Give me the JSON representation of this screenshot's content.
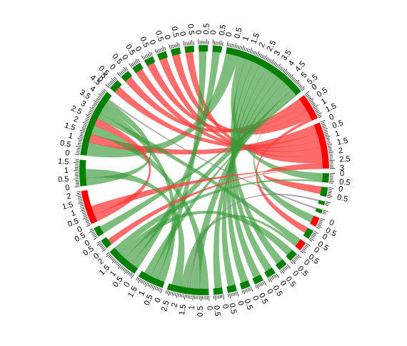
{
  "chart_data": {
    "type": "chord",
    "title": "",
    "colors": {
      "positive": "#008000",
      "negative": "#ff0000",
      "ribbon_positive": "#3a9a3a",
      "ribbon_negative": "#ff3b3b",
      "minor_link": "#777777",
      "tick": "#000000"
    },
    "sectors": [
      {
        "id": "s1",
        "span": 4.4,
        "color": "positive",
        "ticks": [
          "0",
          "0.5",
          "1",
          "1.5",
          "2",
          "2.5",
          "3",
          "3.5",
          "4",
          "4.5",
          "5"
        ]
      },
      {
        "id": "s2",
        "span": 0.7,
        "color": "positive",
        "ticks": [
          "0",
          "0.5"
        ]
      },
      {
        "id": "s3",
        "span": 0.6,
        "color": "positive",
        "ticks": [
          "0",
          "0.5"
        ]
      },
      {
        "id": "s4",
        "span": 0.6,
        "color": "positive",
        "ticks": [
          "0",
          "0.5"
        ]
      },
      {
        "id": "s5",
        "span": 0.6,
        "color": "positive",
        "ticks": [
          "0",
          "0.5"
        ]
      },
      {
        "id": "s6",
        "span": 0.6,
        "color": "positive",
        "ticks": [
          "0",
          "0.5"
        ]
      },
      {
        "id": "s7",
        "span": 0.6,
        "color": "positive",
        "ticks": [
          "0",
          "0.5"
        ]
      },
      {
        "id": "s8",
        "span": 0.6,
        "color": "positive",
        "ticks": [
          "0",
          "0.5"
        ]
      },
      {
        "id": "s9",
        "span": 0.6,
        "color": "positive",
        "ticks": [
          "0",
          "0.5"
        ]
      },
      {
        "id": "s10",
        "span": 0.6,
        "color": "positive",
        "ticks": [
          "0",
          "0.5"
        ]
      },
      {
        "id": "s11",
        "span": 5.6,
        "color": "positive",
        "ticks": [
          "0",
          "0.5",
          "1",
          "1.5",
          "2",
          "2.5",
          "3",
          "3.5",
          "4",
          "4.5",
          "5",
          "5.5"
        ]
      },
      {
        "id": "s12",
        "span": 1.7,
        "color": "negative",
        "ticks": [
          "0",
          "0.5",
          "1",
          "1.5"
        ]
      },
      {
        "id": "s13",
        "span": 3.0,
        "color": "negative",
        "ticks": [
          "0",
          "0.5",
          "1",
          "1.5",
          "2",
          "2.5",
          "3"
        ]
      },
      {
        "id": "s14",
        "span": 0.6,
        "color": "positive",
        "ticks": [
          "0",
          "0.5"
        ]
      },
      {
        "id": "s15",
        "span": 0.6,
        "color": "positive",
        "ticks": [
          "0",
          "0.5"
        ]
      },
      {
        "id": "s16",
        "span": 0.25,
        "color": "positive",
        "ticks": []
      },
      {
        "id": "s17",
        "span": 0.25,
        "color": "positive",
        "ticks": []
      },
      {
        "id": "s18",
        "span": 0.6,
        "color": "negative",
        "ticks": [
          "0",
          "0.5"
        ]
      },
      {
        "id": "s19",
        "span": 0.6,
        "color": "positive",
        "ticks": [
          "0",
          "0.5"
        ]
      },
      {
        "id": "s20",
        "span": 0.6,
        "color": "negative",
        "ticks": [
          "0",
          "0.5"
        ]
      },
      {
        "id": "s21",
        "span": 0.6,
        "color": "positive",
        "ticks": [
          "0",
          "0.5"
        ]
      },
      {
        "id": "s22",
        "span": 0.6,
        "color": "positive",
        "ticks": [
          "0",
          "0.5"
        ]
      },
      {
        "id": "s23",
        "span": 0.6,
        "color": "positive",
        "ticks": [
          "0",
          "0.5"
        ]
      },
      {
        "id": "s24",
        "span": 0.6,
        "color": "positive",
        "ticks": [
          "0",
          "0.5"
        ]
      },
      {
        "id": "s25",
        "span": 0.6,
        "color": "positive",
        "ticks": [
          "0",
          "0.5"
        ]
      },
      {
        "id": "s26",
        "span": 0.6,
        "color": "positive",
        "ticks": [
          "0",
          "0.5"
        ]
      },
      {
        "id": "s27",
        "span": 0.6,
        "color": "positive",
        "ticks": [
          "0",
          "0.5"
        ]
      },
      {
        "id": "s28",
        "span": 2.7,
        "color": "positive",
        "ticks": [
          "0",
          "0.5",
          "1",
          "1.5",
          "2",
          "2.5"
        ]
      },
      {
        "id": "s29",
        "span": 1.7,
        "color": "positive",
        "ticks": [
          "0",
          "0.5",
          "1",
          "1.5"
        ]
      },
      {
        "id": "s30",
        "span": 2.1,
        "color": "positive",
        "ticks": [
          "0",
          "0.5",
          "1",
          "1.5",
          "2"
        ]
      },
      {
        "id": "s31",
        "span": 0.6,
        "color": "positive",
        "ticks": [
          "0",
          "0.5"
        ]
      },
      {
        "id": "s32",
        "span": 0.6,
        "color": "positive",
        "ticks": [
          "0",
          "0.5"
        ]
      },
      {
        "id": "s33",
        "span": 2.2,
        "color": "negative",
        "ticks": [
          "0",
          "0.5",
          "1",
          "1.5",
          "2"
        ]
      },
      {
        "id": "s34",
        "span": 1.7,
        "color": "positive",
        "ticks": [
          "0",
          "0.5",
          "1",
          "1.5"
        ]
      }
    ],
    "links": [
      {
        "from": "s1",
        "to": "s11",
        "value": 0.9,
        "sign": "positive"
      },
      {
        "from": "s1",
        "to": "s13",
        "value": 0.6,
        "sign": "negative"
      },
      {
        "from": "s1",
        "to": "s28",
        "value": 0.6,
        "sign": "positive"
      },
      {
        "from": "s1",
        "to": "s33",
        "value": 0.5,
        "sign": "negative"
      },
      {
        "from": "s1",
        "to": "s20",
        "value": 0.4,
        "sign": "positive"
      },
      {
        "from": "s1",
        "to": "s29",
        "value": 0.5,
        "sign": "positive"
      },
      {
        "from": "s1",
        "to": "s34",
        "value": 0.5,
        "sign": "positive"
      },
      {
        "from": "s2",
        "to": "s13",
        "value": 0.5,
        "sign": "negative"
      },
      {
        "from": "s3",
        "to": "s12",
        "value": 0.5,
        "sign": "negative"
      },
      {
        "from": "s4",
        "to": "s13",
        "value": 0.5,
        "sign": "negative"
      },
      {
        "from": "s5",
        "to": "s12",
        "value": 0.5,
        "sign": "negative"
      },
      {
        "from": "s6",
        "to": "s13",
        "value": 0.5,
        "sign": "negative"
      },
      {
        "from": "s7",
        "to": "s12",
        "value": 0.5,
        "sign": "negative"
      },
      {
        "from": "s8",
        "to": "s13",
        "value": 0.5,
        "sign": "negative"
      },
      {
        "from": "s9",
        "to": "s29",
        "value": 0.5,
        "sign": "positive"
      },
      {
        "from": "s10",
        "to": "s30",
        "value": 0.5,
        "sign": "positive"
      },
      {
        "from": "s11",
        "to": "s14",
        "value": 0.5,
        "sign": "positive"
      },
      {
        "from": "s11",
        "to": "s22",
        "value": 0.5,
        "sign": "positive"
      },
      {
        "from": "s11",
        "to": "s23",
        "value": 0.5,
        "sign": "positive"
      },
      {
        "from": "s11",
        "to": "s24",
        "value": 0.5,
        "sign": "positive"
      },
      {
        "from": "s11",
        "to": "s25",
        "value": 0.5,
        "sign": "positive"
      },
      {
        "from": "s11",
        "to": "s26",
        "value": 0.5,
        "sign": "positive"
      },
      {
        "from": "s11",
        "to": "s27",
        "value": 0.5,
        "sign": "positive"
      },
      {
        "from": "s11",
        "to": "s28",
        "value": 0.7,
        "sign": "positive"
      },
      {
        "from": "s11",
        "to": "s30",
        "value": 0.6,
        "sign": "positive"
      },
      {
        "from": "s12",
        "to": "s19",
        "value": 0.4,
        "sign": "negative"
      },
      {
        "from": "s13",
        "to": "s15",
        "value": 0.5,
        "sign": "negative"
      },
      {
        "from": "s13",
        "to": "s31",
        "value": 0.4,
        "sign": "negative"
      },
      {
        "from": "s16",
        "to": "s28",
        "value": 0.1,
        "sign": "minor"
      },
      {
        "from": "s17",
        "to": "s1",
        "value": 0.1,
        "sign": "minor"
      },
      {
        "from": "s18",
        "to": "s11",
        "value": 0.5,
        "sign": "positive"
      },
      {
        "from": "s20",
        "to": "s28",
        "value": 0.5,
        "sign": "positive"
      },
      {
        "from": "s21",
        "to": "s30",
        "value": 0.5,
        "sign": "positive"
      },
      {
        "from": "s32",
        "to": "s11",
        "value": 0.5,
        "sign": "positive"
      },
      {
        "from": "s33",
        "to": "s13",
        "value": 0.6,
        "sign": "negative"
      },
      {
        "from": "s34",
        "to": "s28",
        "value": 0.6,
        "sign": "positive"
      },
      {
        "from": "s29",
        "to": "s11",
        "value": 0.5,
        "sign": "positive"
      },
      {
        "from": "s30",
        "to": "s14",
        "value": 0.5,
        "sign": "positive"
      }
    ]
  }
}
